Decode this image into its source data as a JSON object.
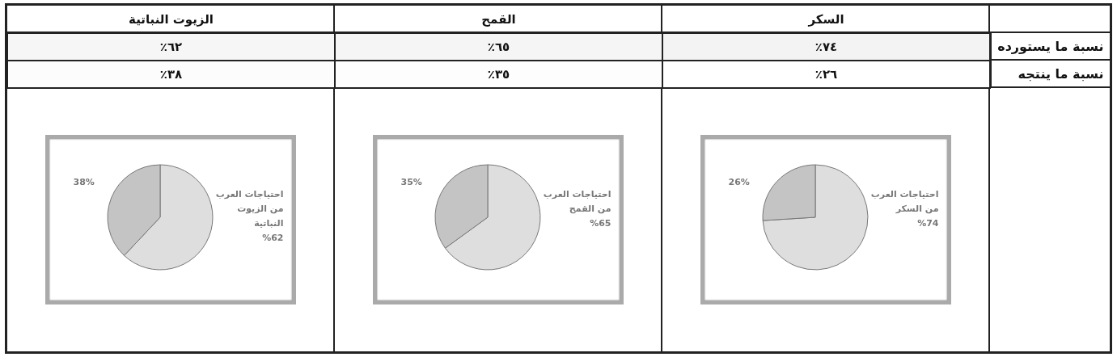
{
  "chart_data": [
    {
      "type": "heatmap",
      "categories": [
        "الزيوت النباتية",
        "القمح",
        "السكر"
      ],
      "y_categories": [
        "نسبة ما يستورده",
        "نسبة ما ينتجه"
      ],
      "cells": [
        [
          62,
          65,
          74
        ],
        [
          38,
          35,
          26
        ]
      ],
      "cell_labels": [
        [
          "٪٦٢",
          "٪٦٥",
          "٪٧٤"
        ],
        [
          "٪٣٨",
          "٪٣٥",
          "٪٢٦"
        ]
      ]
    },
    {
      "type": "pie",
      "categories": [
        "احتياجات العرب من الزيوت النباتية",
        null
      ],
      "values": [
        62,
        38
      ],
      "value_labels": [
        "%62",
        "38%"
      ],
      "colors": [
        "#dedede",
        "#c4c4c4"
      ]
    },
    {
      "type": "pie",
      "categories": [
        "احتياجات العرب من القمح",
        null
      ],
      "values": [
        65,
        35
      ],
      "value_labels": [
        "%65",
        "35%"
      ],
      "colors": [
        "#dedede",
        "#c4c4c4"
      ]
    },
    {
      "type": "pie",
      "categories": [
        "احتياجات العرب من السكر",
        null
      ],
      "values": [
        74,
        26
      ],
      "value_labels": [
        "%74",
        "26%"
      ],
      "colors": [
        "#dedede",
        "#c4c4c4"
      ]
    }
  ]
}
